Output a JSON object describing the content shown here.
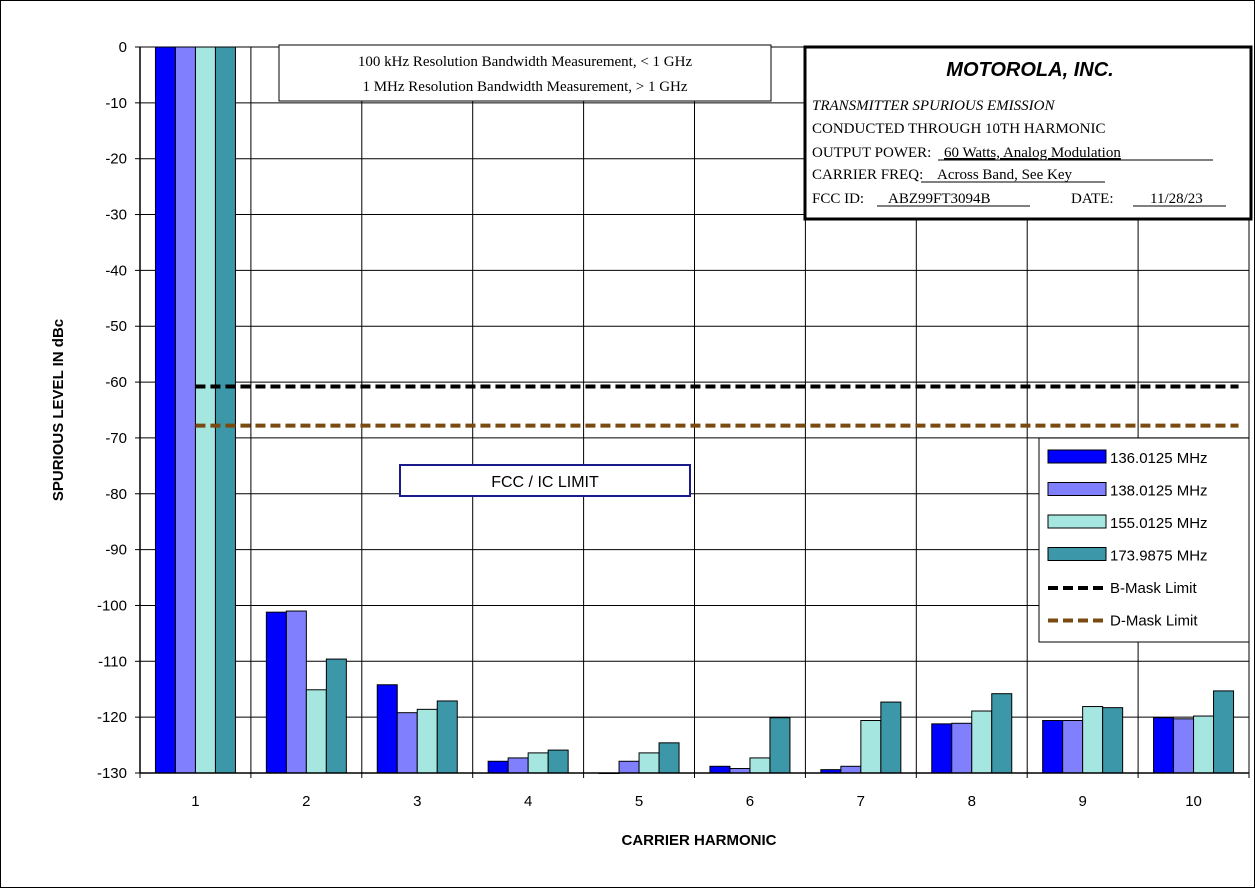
{
  "chart_data": {
    "type": "bar",
    "xlabel": "CARRIER HARMONIC",
    "ylabel": "SPURIOUS LEVEL IN dBc",
    "ylim": [
      -130,
      0
    ],
    "yticks": [
      "0",
      "-10",
      "-20",
      "-30",
      "-40",
      "-50",
      "-60",
      "-70",
      "-80",
      "-90",
      "-100",
      "-110",
      "-120",
      "-130"
    ],
    "categories": [
      "1",
      "2",
      "3",
      "4",
      "5",
      "6",
      "7",
      "8",
      "9",
      "10"
    ],
    "grid": true,
    "legend_position": "right",
    "series": [
      {
        "name": "136.0125 MHz",
        "color": "#0000ff",
        "values": [
          0,
          -101.2,
          -114.2,
          -127.9,
          -130,
          -128.8,
          -129.4,
          -121.2,
          -120.6,
          -120.1
        ]
      },
      {
        "name": "138.0125 MHz",
        "color": "#8080ff",
        "values": [
          0,
          -101.0,
          -119.2,
          -127.3,
          -127.9,
          -129.2,
          -128.8,
          -121.1,
          -120.6,
          -120.3
        ]
      },
      {
        "name": "155.0125 MHz",
        "color": "#a6e6e0",
        "values": [
          0,
          -115.1,
          -118.6,
          -126.4,
          -126.4,
          -127.3,
          -120.6,
          -118.9,
          -118.1,
          -119.8
        ]
      },
      {
        "name": "173.9875 MHz",
        "color": "#3c97a8",
        "values": [
          0,
          -109.6,
          -117.1,
          -125.9,
          -124.6,
          -120.1,
          -117.3,
          -115.8,
          -118.3,
          -115.3
        ]
      }
    ],
    "limits": [
      {
        "name": "B-Mask Limit",
        "value": -60.8,
        "color": "#000000"
      },
      {
        "name": "D-Mask Limit",
        "value": -67.8,
        "color": "#7a4a10"
      }
    ],
    "annotations": {
      "rbw_line1": "100 kHz Resolution Bandwidth Measurement, < 1 GHz",
      "rbw_line2": "1 MHz Resolution Bandwidth Measurement, > 1 GHz",
      "limit_label": "FCC / IC LIMIT"
    },
    "info_box": {
      "company": "MOTOROLA, INC.",
      "title": "TRANSMITTER SPURIOUS EMISSION",
      "line1": "CONDUCTED THROUGH 10TH HARMONIC",
      "power_label": "OUTPUT POWER:",
      "power_value": "60 Watts, Analog Modulation",
      "freq_label": "CARRIER FREQ:",
      "freq_value": "Across Band, See Key",
      "fcc_label": "FCC ID:",
      "fcc_value": "ABZ99FT3094B",
      "date_label": "DATE:",
      "date_value": "11/28/23"
    }
  }
}
